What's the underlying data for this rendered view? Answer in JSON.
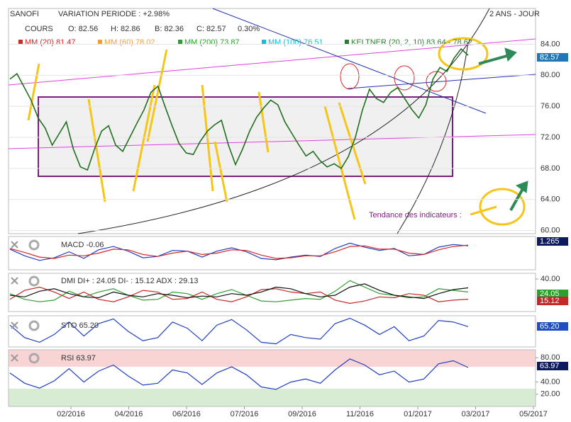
{
  "chart_data": [
    {
      "type": "line",
      "title": "SANOFI",
      "subtitle": "VARIATION PERIODE : +2.98%",
      "period": "2 ANS - JOUR",
      "quote": [
        "COURS",
        "O: 82.56",
        "H: 82.86",
        "B: 82.36",
        "C: 82.57",
        "0.30%"
      ],
      "legend_items": [
        {
          "name": "MM (20) 81.47",
          "color": "#d62728"
        },
        {
          "name": "MM (60) 78.02",
          "color": "#f0a030"
        },
        {
          "name": "MM (200) 73.87",
          "color": "#2ca02c"
        },
        {
          "name": "MM (100) 76.51",
          "color": "#17becf"
        },
        {
          "name": "KELTNER (20, 2, 10) 83.64 - 78.62",
          "color": "#2e7d32"
        }
      ],
      "annotation": "Tendance des indicateurs :",
      "tag": "82.57",
      "series": [
        {
          "color": "#1f6f1f",
          "values": [
            79.5,
            80.2,
            78.5,
            76.8,
            74.5,
            73.2,
            71.0,
            72.5,
            74.0,
            70.5,
            68.2,
            67.8,
            70.5,
            72.8,
            73.5,
            71.0,
            70.2,
            72.0,
            73.8,
            75.5,
            77.8,
            78.6,
            76.0,
            73.5,
            71.2,
            70.0,
            69.8,
            71.5,
            72.8,
            73.6,
            74.2,
            71.0,
            68.5,
            70.5,
            72.8,
            74.6,
            75.8,
            76.8,
            76.2,
            74.0,
            72.5,
            71.0,
            69.6,
            70.2,
            69.0,
            68.2,
            68.6,
            68.0,
            69.5,
            72.0,
            75.5,
            78.2,
            77.0,
            76.5,
            77.8,
            78.4,
            77.0,
            75.6,
            74.5,
            76.2,
            79.5,
            81.0,
            80.5,
            82.2,
            83.4,
            82.57
          ]
        }
      ],
      "ylim": [
        59.6,
        88.6
      ],
      "yticks": [
        {
          "value": 60,
          "label": "60.00"
        },
        {
          "value": 64,
          "label": "64.00"
        },
        {
          "value": 68,
          "label": "68.00"
        },
        {
          "value": 72,
          "label": "72.00"
        },
        {
          "value": 76,
          "label": "76.00"
        },
        {
          "value": 80,
          "label": "80.00"
        },
        {
          "value": 84,
          "label": "84.00"
        }
      ],
      "x_labels": [
        "02/2016",
        "04/2016",
        "06/2016",
        "07/2016",
        "09/2016",
        "11/2016",
        "01/2017",
        "03/2017",
        "05/2017"
      ],
      "grid": true
    },
    {
      "type": "line",
      "title": "MACD -0.06",
      "tag": "1.265",
      "series": [
        {
          "color": "#1f3fbf",
          "values": [
            0.6,
            -0.4,
            -1.1,
            -0.7,
            0.2,
            -0.8,
            0.5,
            1.0,
            0.3,
            -0.7,
            -0.5,
            0.4,
            0.3,
            -0.6,
            0.3,
            0.8,
            0.2,
            -0.8,
            -1.0,
            -0.6,
            -0.3,
            -0.5,
            0.7,
            1.5,
            0.9,
            0.4,
            0.7,
            -0.4,
            -0.2,
            0.9,
            1.3,
            1.1
          ]
        },
        {
          "color": "#d62728",
          "values": [
            0.7,
            0.1,
            -0.6,
            -0.8,
            -0.3,
            -0.4,
            0.0,
            0.6,
            0.5,
            -0.2,
            -0.5,
            0.0,
            0.3,
            -0.2,
            0.0,
            0.5,
            0.4,
            -0.3,
            -0.8,
            -0.7,
            -0.4,
            -0.4,
            0.2,
            1.0,
            1.1,
            0.6,
            0.6,
            0.0,
            -0.2,
            0.5,
            1.0,
            1.2
          ]
        }
      ],
      "ylim": [
        -2.5,
        2.5
      ]
    },
    {
      "type": "line",
      "title": "DMI DI+ : 24.05 DI- : 15.12 ADX : 29.13",
      "tags": [
        "24.05",
        "15.12"
      ],
      "series": [
        {
          "color": "#2ca02c",
          "values": [
            22,
            15,
            12,
            14,
            25,
            18,
            24,
            28,
            20,
            14,
            15,
            24,
            22,
            15,
            22,
            27,
            20,
            13,
            12,
            14,
            16,
            15,
            25,
            38,
            30,
            22,
            20,
            17,
            18,
            28,
            26,
            24.05
          ]
        },
        {
          "color": "#c62828",
          "values": [
            15,
            26,
            30,
            24,
            16,
            24,
            15,
            12,
            18,
            26,
            24,
            15,
            16,
            24,
            15,
            12,
            18,
            27,
            28,
            24,
            22,
            24,
            14,
            10,
            13,
            18,
            17,
            22,
            20,
            12,
            14,
            15.12
          ]
        },
        {
          "color": "#111111",
          "values": [
            20,
            18,
            25,
            28,
            22,
            18,
            17,
            24,
            20,
            18,
            22,
            20,
            17,
            19,
            18,
            22,
            20,
            24,
            30,
            28,
            22,
            18,
            20,
            30,
            34,
            26,
            20,
            18,
            16,
            22,
            27,
            29.13
          ]
        }
      ],
      "ylim": [
        0,
        47
      ],
      "yticks": [
        {
          "value": 40,
          "label": "40.00"
        }
      ]
    },
    {
      "type": "line",
      "title": "STO 65.20",
      "tag": "65.20",
      "series": [
        {
          "color": "#1f3fbf",
          "values": [
            70,
            30,
            15,
            40,
            80,
            35,
            75,
            90,
            50,
            20,
            30,
            80,
            60,
            20,
            70,
            88,
            55,
            15,
            10,
            40,
            30,
            25,
            75,
            92,
            70,
            40,
            65,
            20,
            35,
            85,
            80,
            65.2
          ]
        }
      ],
      "ylim": [
        0,
        100
      ]
    },
    {
      "type": "line",
      "title": "RSI 63.97",
      "tag": "63.97",
      "series": [
        {
          "color": "#1f3fbf",
          "values": [
            55,
            38,
            30,
            42,
            62,
            40,
            58,
            68,
            50,
            35,
            38,
            60,
            55,
            36,
            55,
            65,
            52,
            32,
            28,
            40,
            45,
            38,
            60,
            78,
            68,
            52,
            58,
            40,
            45,
            70,
            75,
            63.97
          ]
        }
      ],
      "ylim": [
        0,
        93
      ],
      "yticks": [
        {
          "value": 20,
          "label": "20.00"
        },
        {
          "value": 40,
          "label": "40.00"
        },
        {
          "value": 80,
          "label": "80.00"
        }
      ]
    }
  ]
}
